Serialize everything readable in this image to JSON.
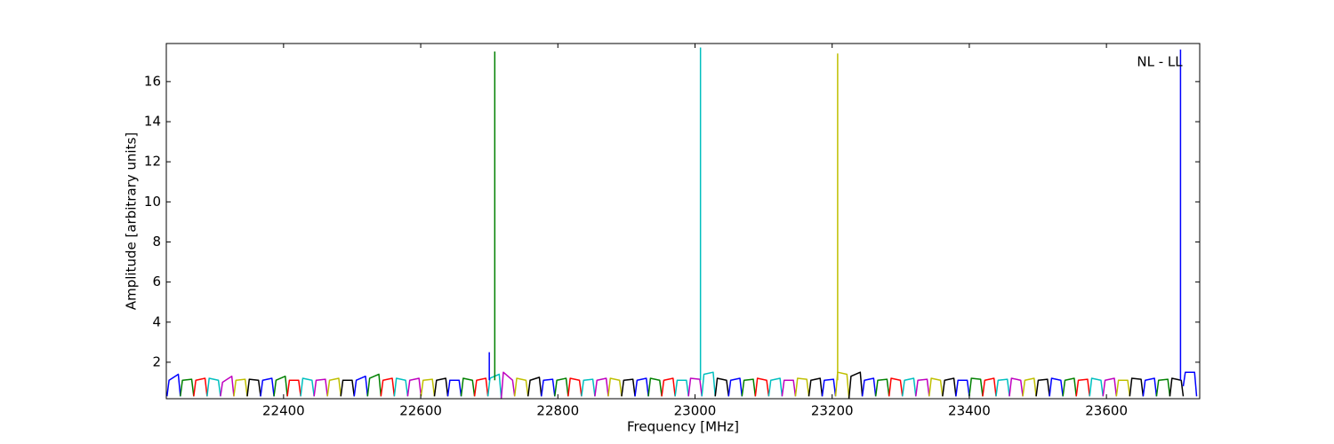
{
  "chart_data": {
    "type": "line",
    "x_label": "Frequency [MHz]",
    "y_label": "Amplitude [arbitrary units]",
    "annotation": "NL - LL",
    "xlim": [
      22229,
      23736
    ],
    "ylim": [
      0.18,
      17.9
    ],
    "xticks": [
      22400,
      22600,
      22800,
      23000,
      23200,
      23400,
      23600
    ],
    "yticks": [
      2,
      4,
      6,
      8,
      10,
      12,
      14,
      16
    ],
    "series": [
      {
        "color": "#0000ff",
        "x": [
          22230,
          22233,
          22246.5,
          22249.5
        ],
        "values": [
          0.3,
          1.1,
          1.4,
          0.3
        ]
      },
      {
        "color": "#008000",
        "x": [
          22249.5,
          22252.5,
          22266,
          22269
        ],
        "values": [
          0.3,
          1.1,
          1.15,
          0.3
        ]
      },
      {
        "color": "#ff0000",
        "x": [
          22269,
          22272,
          22285.5,
          22288.5
        ],
        "values": [
          0.3,
          1.1,
          1.2,
          0.3
        ]
      },
      {
        "color": "#00bfbf",
        "x": [
          22288.5,
          22291.5,
          22305,
          22308
        ],
        "values": [
          0.3,
          1.2,
          1.1,
          0.3
        ]
      },
      {
        "color": "#bf00bf",
        "x": [
          22308,
          22311,
          22324.5,
          22327.5
        ],
        "values": [
          0.3,
          1.0,
          1.3,
          0.3
        ]
      },
      {
        "color": "#bfbf00",
        "x": [
          22327.5,
          22330.5,
          22344,
          22347
        ],
        "values": [
          0.3,
          1.1,
          1.15,
          0.3
        ]
      },
      {
        "color": "#000000",
        "x": [
          22347,
          22350,
          22363.5,
          22366.5
        ],
        "values": [
          0.3,
          1.15,
          1.1,
          0.3
        ]
      },
      {
        "color": "#0000ff",
        "x": [
          22366.5,
          22369.5,
          22383,
          22386
        ],
        "values": [
          0.3,
          1.1,
          1.2,
          0.3
        ]
      },
      {
        "color": "#008000",
        "x": [
          22386,
          22389,
          22402.5,
          22405.5
        ],
        "values": [
          0.3,
          1.1,
          1.3,
          0.3
        ]
      },
      {
        "color": "#ff0000",
        "x": [
          22405.5,
          22408.5,
          22422,
          22425
        ],
        "values": [
          0.3,
          1.1,
          1.1,
          0.3
        ]
      },
      {
        "color": "#00bfbf",
        "x": [
          22425,
          22428,
          22441.5,
          22444.5
        ],
        "values": [
          0.3,
          1.2,
          1.1,
          0.3
        ]
      },
      {
        "color": "#bf00bf",
        "x": [
          22444.5,
          22447.5,
          22461,
          22464
        ],
        "values": [
          0.3,
          1.1,
          1.15,
          0.3
        ]
      },
      {
        "color": "#bfbf00",
        "x": [
          22464,
          22467,
          22480.5,
          22483.5
        ],
        "values": [
          0.3,
          1.1,
          1.2,
          0.3
        ]
      },
      {
        "color": "#000000",
        "x": [
          22483.5,
          22486.5,
          22500,
          22503
        ],
        "values": [
          0.3,
          1.1,
          1.1,
          0.3
        ]
      },
      {
        "color": "#0000ff",
        "x": [
          22503,
          22506,
          22519.5,
          22522.5
        ],
        "values": [
          0.3,
          1.1,
          1.3,
          0.3
        ]
      },
      {
        "color": "#008000",
        "x": [
          22522.5,
          22525.5,
          22539,
          22542
        ],
        "values": [
          0.3,
          1.2,
          1.4,
          0.3
        ]
      },
      {
        "color": "#ff0000",
        "x": [
          22542,
          22545,
          22558.5,
          22561.5
        ],
        "values": [
          0.3,
          1.1,
          1.2,
          0.3
        ]
      },
      {
        "color": "#00bfbf",
        "x": [
          22561.5,
          22564.5,
          22578,
          22581
        ],
        "values": [
          0.3,
          1.2,
          1.1,
          0.3
        ]
      },
      {
        "color": "#bf00bf",
        "x": [
          22581,
          22584,
          22597.5,
          22600.5
        ],
        "values": [
          0.3,
          1.1,
          1.2,
          0.3
        ]
      },
      {
        "color": "#bfbf00",
        "x": [
          22600.5,
          22603.5,
          22617,
          22620
        ],
        "values": [
          0.3,
          1.1,
          1.15,
          0.3
        ]
      },
      {
        "color": "#000000",
        "x": [
          22620,
          22623,
          22636.5,
          22639.5
        ],
        "values": [
          0.3,
          1.1,
          1.2,
          0.3
        ]
      },
      {
        "color": "#0000ff",
        "x": [
          22639.5,
          22642.5,
          22656,
          22659
        ],
        "values": [
          0.3,
          1.1,
          1.1,
          0.3
        ]
      },
      {
        "color": "#008000",
        "x": [
          22659,
          22662,
          22675.5,
          22678.5
        ],
        "values": [
          0.3,
          1.2,
          1.1,
          0.3
        ]
      },
      {
        "color": "#ff0000",
        "x": [
          22678.5,
          22681.5,
          22695,
          22698
        ],
        "values": [
          0.3,
          1.1,
          1.2,
          0.3
        ]
      },
      {
        "color": "#00bfbf",
        "x": [
          22698,
          22701,
          22714.5,
          22717.5
        ],
        "values": [
          0.3,
          1.2,
          1.4,
          0.2
        ]
      },
      {
        "color": "#bf00bf",
        "x": [
          22717.5,
          22720.5,
          22734,
          22737
        ],
        "values": [
          0.2,
          1.5,
          1.1,
          0.3
        ]
      },
      {
        "color": "#bfbf00",
        "x": [
          22737,
          22740,
          22753.5,
          22756.5
        ],
        "values": [
          0.3,
          1.2,
          1.1,
          0.3
        ]
      },
      {
        "color": "#000000",
        "x": [
          22756.5,
          22759.5,
          22773,
          22776
        ],
        "values": [
          0.3,
          1.1,
          1.25,
          0.3
        ]
      },
      {
        "color": "#0000ff",
        "x": [
          22776,
          22779,
          22792.5,
          22795.5
        ],
        "values": [
          0.3,
          1.1,
          1.15,
          0.3
        ]
      },
      {
        "color": "#008000",
        "x": [
          22795.5,
          22798.5,
          22812,
          22815
        ],
        "values": [
          0.3,
          1.1,
          1.2,
          0.3
        ]
      },
      {
        "color": "#ff0000",
        "x": [
          22815,
          22818,
          22831.5,
          22834.5
        ],
        "values": [
          0.3,
          1.2,
          1.1,
          0.3
        ]
      },
      {
        "color": "#00bfbf",
        "x": [
          22834.5,
          22837.5,
          22851,
          22854
        ],
        "values": [
          0.3,
          1.1,
          1.15,
          0.3
        ]
      },
      {
        "color": "#bf00bf",
        "x": [
          22854,
          22857,
          22870.5,
          22873.5
        ],
        "values": [
          0.3,
          1.1,
          1.2,
          0.3
        ]
      },
      {
        "color": "#bfbf00",
        "x": [
          22873.5,
          22876.5,
          22890,
          22893
        ],
        "values": [
          0.3,
          1.2,
          1.1,
          0.3
        ]
      },
      {
        "color": "#000000",
        "x": [
          22893,
          22896,
          22909.5,
          22912.5
        ],
        "values": [
          0.3,
          1.1,
          1.15,
          0.3
        ]
      },
      {
        "color": "#0000ff",
        "x": [
          22912.5,
          22915.5,
          22929,
          22932
        ],
        "values": [
          0.3,
          1.1,
          1.2,
          0.3
        ]
      },
      {
        "color": "#008000",
        "x": [
          22932,
          22935,
          22948.5,
          22951.5
        ],
        "values": [
          0.3,
          1.2,
          1.1,
          0.3
        ]
      },
      {
        "color": "#ff0000",
        "x": [
          22951.5,
          22954.5,
          22968,
          22971
        ],
        "values": [
          0.3,
          1.1,
          1.2,
          0.3
        ]
      },
      {
        "color": "#00bfbf",
        "x": [
          22971,
          22974,
          22987.5,
          22990.5
        ],
        "values": [
          0.3,
          1.1,
          1.1,
          0.3
        ]
      },
      {
        "color": "#bf00bf",
        "x": [
          22990.5,
          22993.5,
          23007,
          23010
        ],
        "values": [
          0.3,
          1.2,
          1.15,
          0.3
        ]
      },
      {
        "color": "#00bfbf",
        "x": [
          23010,
          23013,
          23026.5,
          23029.5
        ],
        "values": [
          0.3,
          1.4,
          1.5,
          0.3
        ]
      },
      {
        "color": "#000000",
        "x": [
          23029.5,
          23032.5,
          23046,
          23049
        ],
        "values": [
          0.3,
          1.2,
          1.1,
          0.3
        ]
      },
      {
        "color": "#0000ff",
        "x": [
          23049,
          23052,
          23065.5,
          23068.5
        ],
        "values": [
          0.3,
          1.1,
          1.2,
          0.3
        ]
      },
      {
        "color": "#008000",
        "x": [
          23068.5,
          23071.5,
          23085,
          23088
        ],
        "values": [
          0.3,
          1.1,
          1.15,
          0.3
        ]
      },
      {
        "color": "#ff0000",
        "x": [
          23088,
          23091,
          23104.5,
          23107.5
        ],
        "values": [
          0.3,
          1.2,
          1.1,
          0.3
        ]
      },
      {
        "color": "#00bfbf",
        "x": [
          23107.5,
          23110.5,
          23124,
          23127
        ],
        "values": [
          0.3,
          1.1,
          1.2,
          0.3
        ]
      },
      {
        "color": "#bf00bf",
        "x": [
          23127,
          23130,
          23143.5,
          23146.5
        ],
        "values": [
          0.3,
          1.1,
          1.1,
          0.3
        ]
      },
      {
        "color": "#bfbf00",
        "x": [
          23146.5,
          23149.5,
          23163,
          23166
        ],
        "values": [
          0.3,
          1.2,
          1.15,
          0.3
        ]
      },
      {
        "color": "#000000",
        "x": [
          23166,
          23169,
          23182.5,
          23185.5
        ],
        "values": [
          0.3,
          1.1,
          1.2,
          0.3
        ]
      },
      {
        "color": "#0000ff",
        "x": [
          23185.5,
          23188.5,
          23202,
          23205
        ],
        "values": [
          0.3,
          1.1,
          1.15,
          0.3
        ]
      },
      {
        "color": "#bfbf00",
        "x": [
          23205,
          23208,
          23221.5,
          23224.5
        ],
        "values": [
          0.3,
          1.5,
          1.4,
          0.2
        ]
      },
      {
        "color": "#000000",
        "x": [
          23224.5,
          23227.5,
          23241,
          23244
        ],
        "values": [
          0.2,
          1.3,
          1.5,
          0.3
        ]
      },
      {
        "color": "#0000ff",
        "x": [
          23244,
          23247,
          23260.5,
          23263.5
        ],
        "values": [
          0.3,
          1.1,
          1.2,
          0.3
        ]
      },
      {
        "color": "#008000",
        "x": [
          23263.5,
          23266.5,
          23280,
          23283
        ],
        "values": [
          0.3,
          1.1,
          1.15,
          0.3
        ]
      },
      {
        "color": "#ff0000",
        "x": [
          23283,
          23286,
          23299.5,
          23302.5
        ],
        "values": [
          0.3,
          1.2,
          1.1,
          0.3
        ]
      },
      {
        "color": "#00bfbf",
        "x": [
          23302.5,
          23305.5,
          23319,
          23322
        ],
        "values": [
          0.3,
          1.1,
          1.2,
          0.3
        ]
      },
      {
        "color": "#bf00bf",
        "x": [
          23322,
          23325,
          23338.5,
          23341.5
        ],
        "values": [
          0.3,
          1.1,
          1.15,
          0.3
        ]
      },
      {
        "color": "#bfbf00",
        "x": [
          23341.5,
          23344.5,
          23358,
          23361
        ],
        "values": [
          0.3,
          1.2,
          1.1,
          0.3
        ]
      },
      {
        "color": "#000000",
        "x": [
          23361,
          23364,
          23377.5,
          23380.5
        ],
        "values": [
          0.3,
          1.1,
          1.2,
          0.3
        ]
      },
      {
        "color": "#0000ff",
        "x": [
          23380.5,
          23383.5,
          23397,
          23400
        ],
        "values": [
          0.3,
          1.1,
          1.1,
          0.3
        ]
      },
      {
        "color": "#008000",
        "x": [
          23400,
          23403,
          23416.5,
          23419.5
        ],
        "values": [
          0.3,
          1.2,
          1.15,
          0.3
        ]
      },
      {
        "color": "#ff0000",
        "x": [
          23419.5,
          23422.5,
          23436,
          23439
        ],
        "values": [
          0.3,
          1.1,
          1.2,
          0.3
        ]
      },
      {
        "color": "#00bfbf",
        "x": [
          23439,
          23442,
          23455.5,
          23458.5
        ],
        "values": [
          0.3,
          1.1,
          1.15,
          0.3
        ]
      },
      {
        "color": "#bf00bf",
        "x": [
          23458.5,
          23461.5,
          23475,
          23478
        ],
        "values": [
          0.3,
          1.2,
          1.1,
          0.3
        ]
      },
      {
        "color": "#bfbf00",
        "x": [
          23478,
          23481,
          23494.5,
          23497.5
        ],
        "values": [
          0.3,
          1.1,
          1.2,
          0.3
        ]
      },
      {
        "color": "#000000",
        "x": [
          23497.5,
          23500.5,
          23514,
          23517
        ],
        "values": [
          0.3,
          1.1,
          1.15,
          0.3
        ]
      },
      {
        "color": "#0000ff",
        "x": [
          23517,
          23520,
          23533.5,
          23536.5
        ],
        "values": [
          0.3,
          1.2,
          1.1,
          0.3
        ]
      },
      {
        "color": "#008000",
        "x": [
          23536.5,
          23539.5,
          23553,
          23556
        ],
        "values": [
          0.3,
          1.1,
          1.2,
          0.3
        ]
      },
      {
        "color": "#ff0000",
        "x": [
          23556,
          23559,
          23572.5,
          23575.5
        ],
        "values": [
          0.3,
          1.1,
          1.15,
          0.3
        ]
      },
      {
        "color": "#00bfbf",
        "x": [
          23575.5,
          23578.5,
          23592,
          23595
        ],
        "values": [
          0.3,
          1.2,
          1.1,
          0.3
        ]
      },
      {
        "color": "#bf00bf",
        "x": [
          23595,
          23598,
          23611.5,
          23614.5
        ],
        "values": [
          0.3,
          1.1,
          1.2,
          0.3
        ]
      },
      {
        "color": "#bfbf00",
        "x": [
          23614.5,
          23617.5,
          23631,
          23634
        ],
        "values": [
          0.3,
          1.1,
          1.1,
          0.3
        ]
      },
      {
        "color": "#000000",
        "x": [
          23634,
          23637,
          23650.5,
          23653.5
        ],
        "values": [
          0.3,
          1.2,
          1.15,
          0.3
        ]
      },
      {
        "color": "#0000ff",
        "x": [
          23653.5,
          23656.5,
          23670,
          23673
        ],
        "values": [
          0.3,
          1.1,
          1.2,
          0.3
        ]
      },
      {
        "color": "#008000",
        "x": [
          23673,
          23676,
          23689.5,
          23692.5
        ],
        "values": [
          0.3,
          1.1,
          1.15,
          0.3
        ]
      },
      {
        "color": "#000000",
        "x": [
          23692.5,
          23695.5,
          23709,
          23712
        ],
        "values": [
          0.3,
          1.2,
          1.1,
          0.3
        ]
      },
      {
        "color": "#0000ff",
        "x": [
          23712,
          23715,
          23728.5,
          23731.5
        ],
        "values": [
          0.8,
          1.5,
          1.5,
          0.3
        ]
      },
      {
        "color": "#0000ff",
        "x": [
          22700,
          22700
        ],
        "values": [
          1.1,
          2.5
        ]
      },
      {
        "color": "#008000",
        "x": [
          22708,
          22708
        ],
        "values": [
          1.1,
          17.5
        ]
      },
      {
        "color": "#00bfbf",
        "x": [
          23008,
          23008
        ],
        "values": [
          1.1,
          17.7
        ]
      },
      {
        "color": "#bfbf00",
        "x": [
          23208,
          23208
        ],
        "values": [
          1.1,
          17.4
        ]
      },
      {
        "color": "#0000ff",
        "x": [
          23708,
          23708
        ],
        "values": [
          1.1,
          17.6
        ]
      }
    ]
  }
}
